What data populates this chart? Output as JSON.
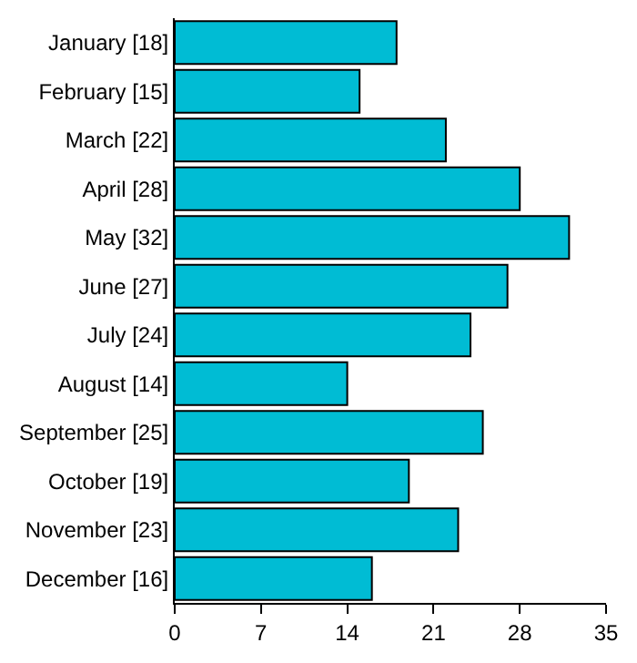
{
  "chart_data": {
    "type": "bar",
    "orientation": "horizontal",
    "categories": [
      "January [18]",
      "February [15]",
      "March [22]",
      "April [28]",
      "May [32]",
      "June [27]",
      "July [24]",
      "August [14]",
      "September [25]",
      "October [19]",
      "November [23]",
      "December [16]"
    ],
    "values": [
      18,
      15,
      22,
      28,
      32,
      27,
      24,
      14,
      25,
      19,
      23,
      16
    ],
    "color": "#00bcd4",
    "xlim": [
      0,
      35
    ],
    "xticks": [
      0,
      7,
      14,
      21,
      28,
      35
    ]
  }
}
